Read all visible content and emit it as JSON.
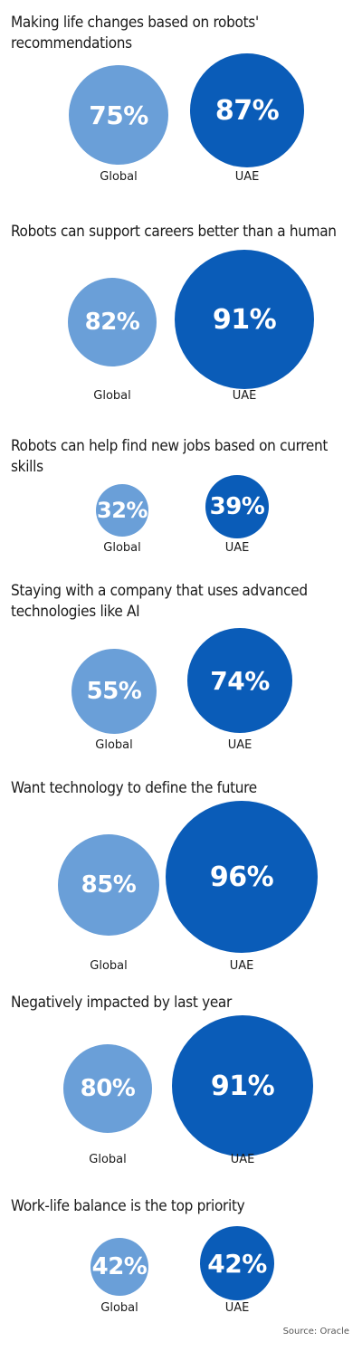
{
  "colors": {
    "global": "#6a9fd8",
    "uae": "#0a5cb8"
  },
  "chart_data": {
    "type": "bubble",
    "categories": [
      "Global",
      "UAE"
    ],
    "panels": [
      {
        "title": "Making life changes based on robots' recommendations",
        "values": [
          75,
          87
        ],
        "labels": [
          "75%",
          "87%"
        ]
      },
      {
        "title": "Robots can support careers better than a human",
        "values": [
          82,
          91
        ],
        "labels": [
          "82%",
          "91%"
        ]
      },
      {
        "title": "Robots can help find new jobs based on current skills",
        "values": [
          32,
          39
        ],
        "labels": [
          "32%",
          "39%"
        ]
      },
      {
        "title": "Staying with a company that uses advanced technologies like AI",
        "values": [
          55,
          74
        ],
        "labels": [
          "55%",
          "74%"
        ]
      },
      {
        "title": "Want technology to define the future",
        "values": [
          85,
          96
        ],
        "labels": [
          "85%",
          "96%"
        ]
      },
      {
        "title": "Negatively impacted by last year",
        "values": [
          80,
          91
        ],
        "labels": [
          "80%",
          "91%"
        ]
      },
      {
        "title": "Work-life balance is the top priority",
        "values": [
          42,
          42
        ],
        "labels": [
          "42%",
          "42%"
        ]
      }
    ]
  },
  "source": "Source: Oracle"
}
